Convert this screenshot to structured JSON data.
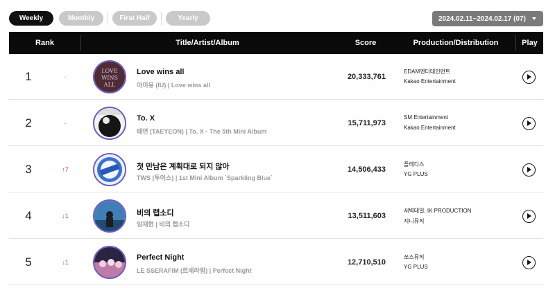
{
  "period_tabs": [
    {
      "label": "Weekly",
      "active": true
    },
    {
      "label": "Monthly",
      "active": false
    },
    {
      "label": "First Half",
      "active": false
    },
    {
      "label": "Yearly",
      "active": false
    }
  ],
  "date_range": "2024.02.11~2024.02.17 (07)",
  "columns": {
    "rank": "Rank",
    "title": "Title/Artist/Album",
    "score": "Score",
    "production": "Production/Distribution",
    "play": "Play"
  },
  "rows": [
    {
      "rank": "1",
      "change": "-",
      "title": "Love wins all",
      "meta": "아이유 (IU) | Love wins all",
      "score": "20,333,761",
      "production": "EDAM엔터테인먼트",
      "distribution": "Kakao Entertainment",
      "art_color": "#6b3340"
    },
    {
      "rank": "2",
      "change": "-",
      "title": "To. X",
      "meta": "태연 (TAEYEON) | To. X - The 5th Mini Album",
      "score": "15,711,973",
      "production": "SM Entertainment",
      "distribution": "Kakao Entertainment",
      "art_color": "#1a1a1a"
    },
    {
      "rank": "3",
      "change": "↑7",
      "title": "첫 만남은 계획대로 되지 않아",
      "meta": "TWS (투어스) | 1st Mini Album `Sparkling Blue`",
      "score": "14,506,433",
      "production": "플레디스",
      "distribution": "YG PLUS",
      "art_color": "#3b6fd4"
    },
    {
      "rank": "4",
      "change": "↓1",
      "title": "비의 랩소디",
      "meta": "임재현 | 비의 랩소디",
      "score": "13,511,603",
      "production": "새벽테일, IK PRODUCTION",
      "distribution": "지니뮤직",
      "art_color": "#2d5f8f"
    },
    {
      "rank": "5",
      "change": "↓1",
      "title": "Perfect Night",
      "meta": "LE SSERAFIM (르세라핌) | Perfect Night",
      "score": "12,710,510",
      "production": "쏘스뮤직",
      "distribution": "YG PLUS",
      "art_color": "#c07aa8"
    }
  ]
}
